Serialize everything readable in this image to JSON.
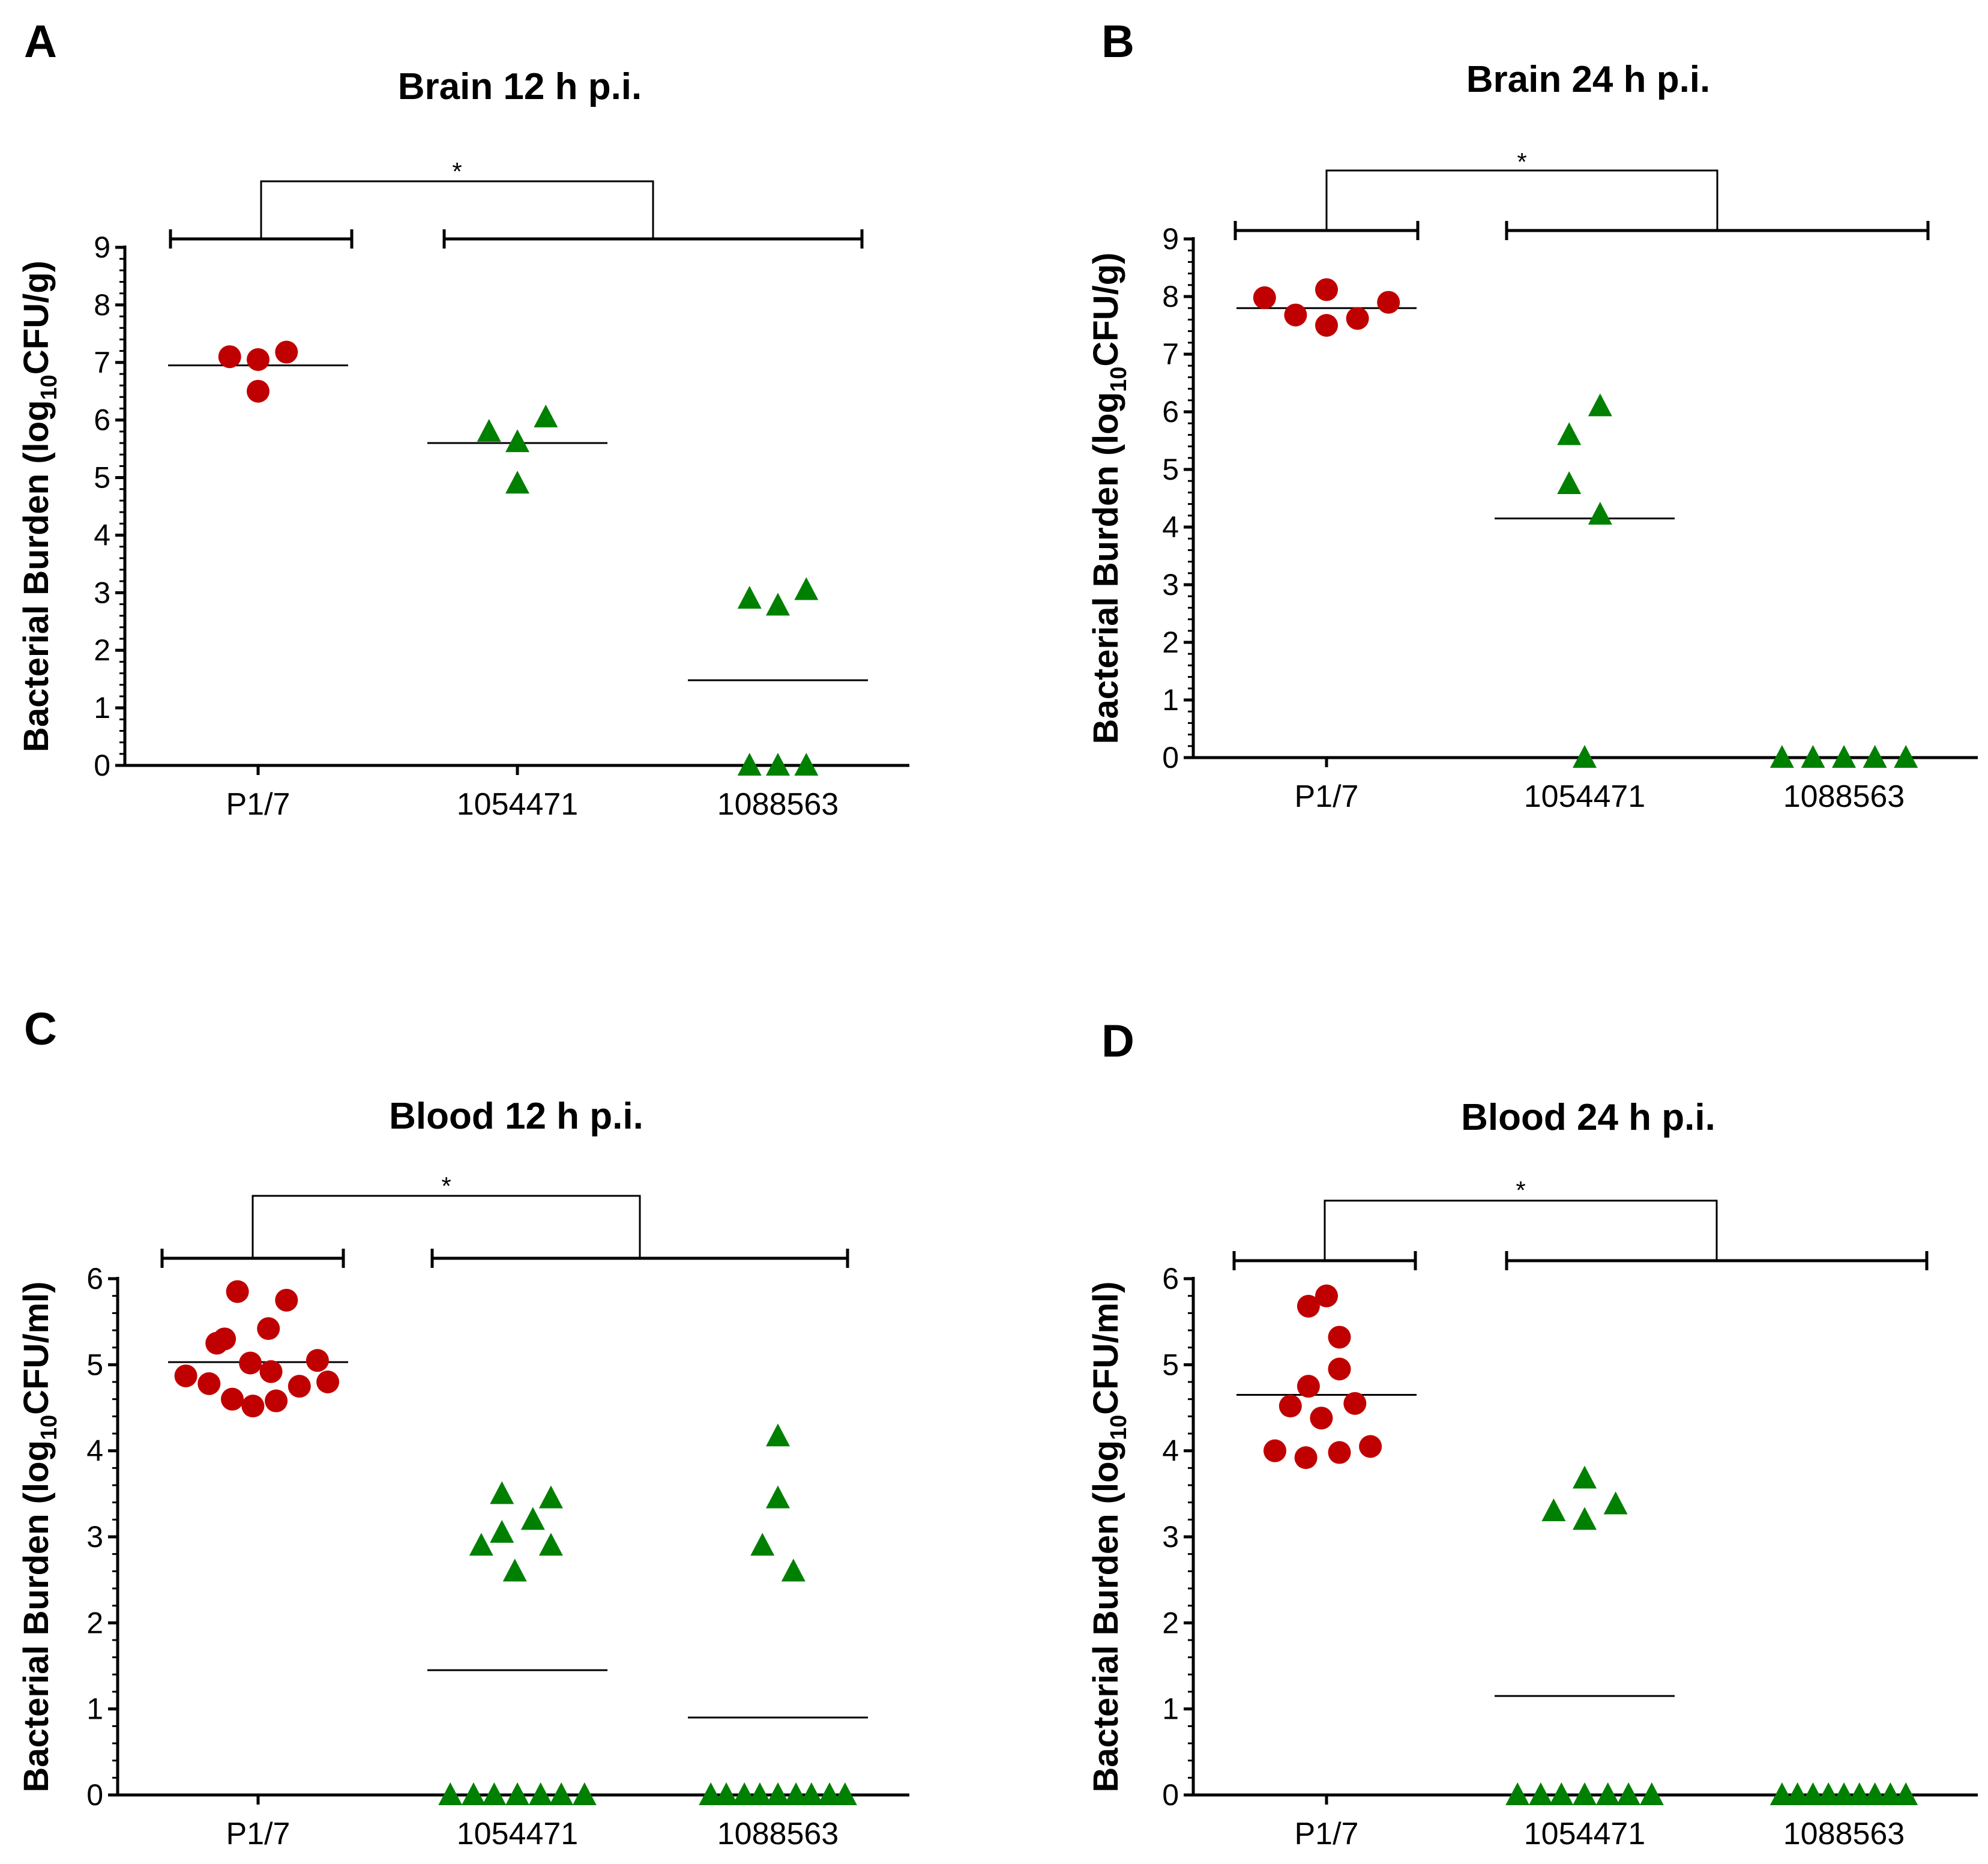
{
  "colors": {
    "circle": "#c00000",
    "triangle": "#008000",
    "axis": "#000000"
  },
  "chart_data": [
    {
      "type": "scatter",
      "panel": "A",
      "title": "Brain 12 h p.i.",
      "ylabel_main": "Bacterial Burden  (log",
      "ylabel_sub": "10",
      "ylabel_end": "CFU/g)",
      "ylim": [
        0,
        9
      ],
      "yticks": [
        0,
        1,
        2,
        3,
        4,
        5,
        6,
        7,
        8,
        9
      ],
      "categories": [
        "P1/7",
        "1054471",
        "1088563"
      ],
      "significance": "*",
      "series": [
        {
          "name": "P1/7",
          "marker": "circle",
          "points": [
            [
              -0.11,
              7.1
            ],
            [
              0.0,
              7.05
            ],
            [
              0.11,
              7.18
            ],
            [
              0.0,
              6.5
            ]
          ],
          "median": 6.95
        },
        {
          "name": "1054471",
          "marker": "triangle",
          "points": [
            [
              -0.11,
              5.8
            ],
            [
              0.0,
              5.62
            ],
            [
              0.11,
              6.05
            ],
            [
              0.0,
              4.9
            ]
          ],
          "median": 5.6
        },
        {
          "name": "1088563",
          "marker": "triangle",
          "points": [
            [
              -0.11,
              2.9
            ],
            [
              0.0,
              2.78
            ],
            [
              0.11,
              3.05
            ],
            [
              -0.11,
              0
            ],
            [
              0.0,
              0
            ],
            [
              0.11,
              0
            ]
          ],
          "median": 1.48
        }
      ]
    },
    {
      "type": "scatter",
      "panel": "B",
      "title": "Brain 24 h p.i.",
      "ylabel_main": "Bacterial Burden  (log",
      "ylabel_sub": "10",
      "ylabel_end": "CFU/g)",
      "ylim": [
        0,
        9
      ],
      "yticks": [
        0,
        1,
        2,
        3,
        4,
        5,
        6,
        7,
        8,
        9
      ],
      "categories": [
        "P1/7",
        "1054471",
        "1088563"
      ],
      "significance": "*",
      "series": [
        {
          "name": "P1/7",
          "marker": "circle",
          "points": [
            [
              -0.24,
              7.98
            ],
            [
              -0.12,
              7.68
            ],
            [
              0.0,
              8.12
            ],
            [
              0.0,
              7.5
            ],
            [
              0.12,
              7.62
            ],
            [
              0.24,
              7.9
            ]
          ],
          "median": 7.8
        },
        {
          "name": "1054471",
          "marker": "triangle",
          "points": [
            [
              -0.06,
              5.6
            ],
            [
              0.06,
              6.1
            ],
            [
              -0.06,
              4.75
            ],
            [
              0.06,
              4.22
            ],
            [
              0.0,
              0
            ]
          ],
          "median": 4.15
        },
        {
          "name": "1088563",
          "marker": "triangle",
          "points": [
            [
              -0.24,
              0
            ],
            [
              -0.12,
              0
            ],
            [
              0.0,
              0
            ],
            [
              0.12,
              0
            ],
            [
              0.24,
              0
            ]
          ],
          "median": 0
        }
      ]
    },
    {
      "type": "scatter",
      "panel": "C",
      "title": "Blood 12 h p.i.",
      "ylabel_main": "Bacterial Burden  (log",
      "ylabel_sub": "10",
      "ylabel_end": "CFU/ml)",
      "ylim": [
        0,
        6
      ],
      "yticks": [
        0,
        1,
        2,
        3,
        4,
        5,
        6
      ],
      "categories": [
        "P1/7",
        "1054471",
        "1088563"
      ],
      "significance": "*",
      "series": [
        {
          "name": "P1/7",
          "marker": "circle",
          "points": [
            [
              -0.08,
              5.85
            ],
            [
              0.11,
              5.75
            ],
            [
              0.04,
              5.42
            ],
            [
              -0.16,
              5.25
            ],
            [
              -0.13,
              5.3
            ],
            [
              0.23,
              5.05
            ],
            [
              -0.03,
              5.02
            ],
            [
              0.05,
              4.92
            ],
            [
              -0.28,
              4.87
            ],
            [
              -0.19,
              4.78
            ],
            [
              0.16,
              4.75
            ],
            [
              0.27,
              4.8
            ],
            [
              -0.1,
              4.6
            ],
            [
              0.07,
              4.58
            ],
            [
              -0.02,
              4.52
            ]
          ],
          "median": 5.03
        },
        {
          "name": "1054471",
          "marker": "triangle",
          "points": [
            [
              -0.06,
              3.5
            ],
            [
              0.13,
              3.45
            ],
            [
              0.06,
              3.2
            ],
            [
              -0.06,
              3.05
            ],
            [
              -0.14,
              2.9
            ],
            [
              0.13,
              2.9
            ],
            [
              -0.01,
              2.6
            ],
            [
              -0.26,
              0
            ],
            [
              -0.17,
              0
            ],
            [
              -0.09,
              0
            ],
            [
              0.0,
              0
            ],
            [
              0.09,
              0
            ],
            [
              0.17,
              0
            ],
            [
              0.26,
              0
            ]
          ],
          "median": 1.45
        },
        {
          "name": "1088563",
          "marker": "triangle",
          "points": [
            [
              0.0,
              4.17
            ],
            [
              0.0,
              3.45
            ],
            [
              -0.06,
              2.9
            ],
            [
              0.06,
              2.6
            ],
            [
              -0.26,
              0
            ],
            [
              -0.2,
              0
            ],
            [
              -0.13,
              0
            ],
            [
              -0.07,
              0
            ],
            [
              0.0,
              0
            ],
            [
              0.07,
              0
            ],
            [
              0.13,
              0
            ],
            [
              0.2,
              0
            ],
            [
              0.26,
              0
            ]
          ],
          "median": 0.9
        }
      ]
    },
    {
      "type": "scatter",
      "panel": "D",
      "title": "Blood 24 h p.i.",
      "ylabel_main": "Bacterial Burden  (log",
      "ylabel_sub": "10",
      "ylabel_end": "CFU/ml)",
      "ylim": [
        0,
        6
      ],
      "yticks": [
        0,
        1,
        2,
        3,
        4,
        5,
        6
      ],
      "categories": [
        "P1/7",
        "1054471",
        "1088563"
      ],
      "significance": "*",
      "series": [
        {
          "name": "P1/7",
          "marker": "circle",
          "points": [
            [
              -0.07,
              5.68
            ],
            [
              0.0,
              5.8
            ],
            [
              0.05,
              5.32
            ],
            [
              0.05,
              4.95
            ],
            [
              -0.07,
              4.75
            ],
            [
              -0.14,
              4.52
            ],
            [
              0.11,
              4.55
            ],
            [
              -0.02,
              4.38
            ],
            [
              -0.2,
              4.0
            ],
            [
              -0.08,
              3.92
            ],
            [
              0.05,
              3.98
            ],
            [
              0.17,
              4.05
            ]
          ],
          "median": 4.65
        },
        {
          "name": "1054471",
          "marker": "triangle",
          "points": [
            [
              0.0,
              3.68
            ],
            [
              -0.12,
              3.3
            ],
            [
              0.12,
              3.38
            ],
            [
              0.0,
              3.2
            ],
            [
              -0.26,
              0
            ],
            [
              -0.17,
              0
            ],
            [
              -0.09,
              0
            ],
            [
              0.0,
              0
            ],
            [
              0.09,
              0
            ],
            [
              0.17,
              0
            ],
            [
              0.26,
              0
            ]
          ],
          "median": 1.15
        },
        {
          "name": "1088563",
          "marker": "triangle",
          "points": [
            [
              -0.24,
              0
            ],
            [
              -0.18,
              0
            ],
            [
              -0.12,
              0
            ],
            [
              -0.06,
              0
            ],
            [
              0.0,
              0
            ],
            [
              0.06,
              0
            ],
            [
              0.12,
              0
            ],
            [
              0.18,
              0
            ],
            [
              0.24,
              0
            ]
          ],
          "median": 0
        }
      ]
    }
  ]
}
